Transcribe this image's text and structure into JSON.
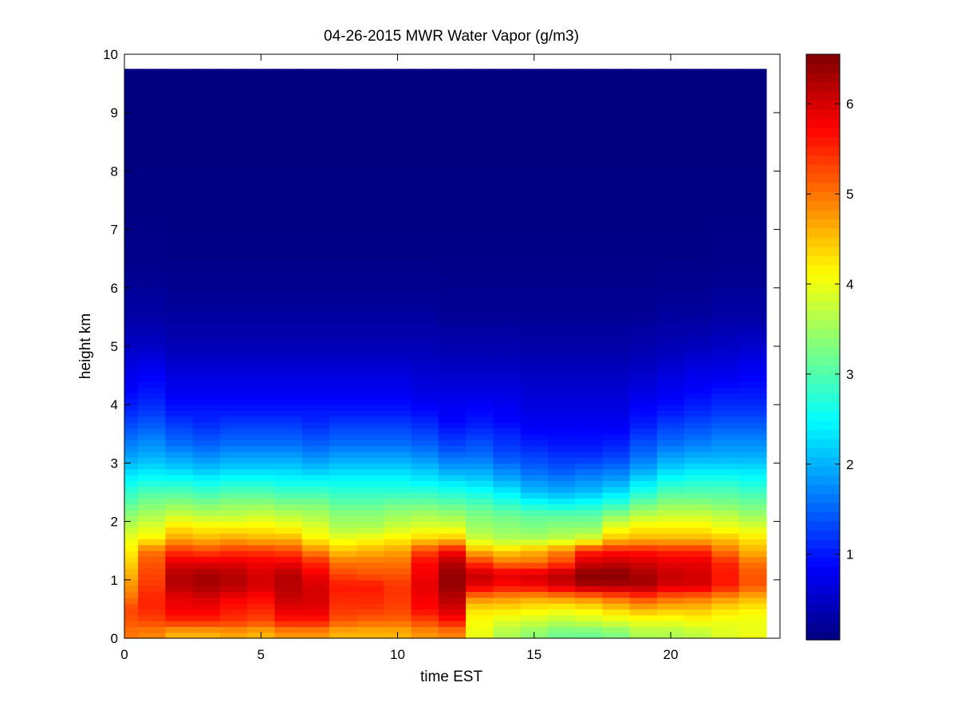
{
  "chart_data": {
    "type": "heatmap",
    "title": "04-26-2015 MWR Water Vapor (g/m3)",
    "xlabel": "time EST",
    "ylabel": "height km",
    "xlim": [
      0,
      24
    ],
    "ylim": [
      0,
      10
    ],
    "xticks": [
      "0",
      "5",
      "10",
      "15",
      "20"
    ],
    "xtick_values": [
      0,
      5,
      10,
      15,
      20
    ],
    "yticks": [
      "0",
      "1",
      "2",
      "3",
      "4",
      "5",
      "6",
      "7",
      "8",
      "9",
      "10"
    ],
    "ytick_values": [
      0,
      1,
      2,
      3,
      4,
      5,
      6,
      7,
      8,
      9,
      10
    ],
    "colorbar": {
      "colormap": "jet",
      "range": [
        0.05,
        6.55
      ],
      "ticks": [
        "1",
        "2",
        "3",
        "4",
        "5",
        "6"
      ],
      "tick_values": [
        1,
        2,
        3,
        4,
        5,
        6
      ]
    },
    "grid": false,
    "time_centers": [
      0,
      1,
      2,
      3,
      4,
      5,
      6,
      7,
      8,
      9,
      10,
      11,
      12,
      13,
      14,
      15,
      16,
      17,
      18,
      19,
      20,
      21,
      22,
      23
    ],
    "data_extent": {
      "time": [
        0,
        23.5
      ],
      "height_km": [
        0,
        9.75
      ]
    },
    "profiles": [
      {
        "h": 0.1,
        "v": [
          5.0,
          4.9,
          4.6,
          4.6,
          4.7,
          4.6,
          4.8,
          4.8,
          4.6,
          4.6,
          4.6,
          4.8,
          4.9,
          4.0,
          3.6,
          3.4,
          3.2,
          3.2,
          3.3,
          3.6,
          3.6,
          3.7,
          3.9,
          4.0
        ]
      },
      {
        "h": 0.3,
        "v": [
          5.2,
          5.3,
          5.5,
          5.5,
          5.4,
          5.3,
          5.6,
          5.6,
          5.2,
          5.1,
          5.1,
          5.3,
          5.6,
          4.1,
          3.9,
          3.8,
          3.7,
          3.8,
          3.9,
          4.0,
          4.0,
          4.1,
          4.0,
          4.0
        ]
      },
      {
        "h": 0.5,
        "v": [
          5.3,
          5.5,
          5.8,
          5.8,
          5.6,
          5.5,
          5.9,
          5.9,
          5.4,
          5.4,
          5.3,
          5.7,
          6.0,
          4.3,
          4.3,
          4.2,
          4.1,
          4.2,
          4.4,
          4.6,
          4.5,
          4.5,
          4.3,
          4.2
        ]
      },
      {
        "h": 0.7,
        "v": [
          5.0,
          5.5,
          5.9,
          6.0,
          5.8,
          5.7,
          6.1,
          6.0,
          5.5,
          5.5,
          5.4,
          5.8,
          6.2,
          4.9,
          4.8,
          4.7,
          4.8,
          4.9,
          5.1,
          5.3,
          5.1,
          5.0,
          4.8,
          4.6
        ]
      },
      {
        "h": 0.9,
        "v": [
          4.8,
          5.4,
          6.2,
          6.3,
          6.2,
          6.0,
          6.2,
          6.0,
          5.6,
          5.6,
          5.4,
          5.9,
          6.4,
          5.9,
          5.7,
          5.8,
          6.0,
          6.3,
          6.3,
          6.3,
          6.0,
          6.0,
          5.6,
          5.2
        ]
      },
      {
        "h": 1.1,
        "v": [
          4.6,
          5.3,
          6.2,
          6.3,
          6.2,
          6.0,
          6.2,
          5.8,
          5.3,
          5.2,
          5.2,
          5.8,
          6.4,
          6.1,
          5.9,
          6.0,
          6.2,
          6.5,
          6.5,
          6.3,
          6.1,
          6.0,
          5.6,
          5.2
        ]
      },
      {
        "h": 1.3,
        "v": [
          4.4,
          5.2,
          5.9,
          5.9,
          5.9,
          5.8,
          5.8,
          5.5,
          5.0,
          5.0,
          5.0,
          5.7,
          6.2,
          5.4,
          5.0,
          5.0,
          5.3,
          6.0,
          6.1,
          6.0,
          5.9,
          5.9,
          5.5,
          5.0
        ]
      },
      {
        "h": 1.5,
        "v": [
          4.2,
          5.0,
          5.4,
          5.3,
          5.4,
          5.4,
          5.3,
          4.9,
          4.5,
          4.6,
          4.7,
          5.3,
          5.7,
          4.6,
          4.4,
          4.6,
          4.9,
          5.5,
          5.6,
          5.6,
          5.5,
          5.5,
          5.0,
          4.6
        ]
      },
      {
        "h": 1.7,
        "v": [
          4.0,
          4.2,
          4.7,
          4.6,
          4.7,
          4.6,
          4.6,
          4.2,
          4.0,
          4.1,
          4.2,
          4.4,
          4.5,
          3.8,
          3.6,
          3.6,
          3.7,
          3.9,
          4.5,
          4.6,
          4.6,
          4.6,
          4.5,
          4.3
        ]
      },
      {
        "h": 1.9,
        "v": [
          3.7,
          3.9,
          4.3,
          4.2,
          4.2,
          4.2,
          4.1,
          3.9,
          3.6,
          3.6,
          3.8,
          3.9,
          3.9,
          3.5,
          3.4,
          3.3,
          3.4,
          3.4,
          4.0,
          4.2,
          4.2,
          4.2,
          4.0,
          3.9
        ]
      },
      {
        "h": 2.1,
        "v": [
          3.4,
          3.6,
          3.8,
          3.7,
          3.7,
          3.8,
          3.7,
          3.6,
          3.4,
          3.4,
          3.5,
          3.6,
          3.5,
          3.3,
          3.2,
          3.1,
          3.1,
          3.1,
          3.4,
          3.7,
          3.8,
          3.8,
          3.7,
          3.5
        ]
      },
      {
        "h": 2.3,
        "v": [
          3.1,
          3.3,
          3.4,
          3.3,
          3.4,
          3.4,
          3.3,
          3.3,
          3.1,
          3.1,
          3.2,
          3.2,
          3.1,
          3.0,
          2.8,
          2.6,
          2.5,
          2.6,
          2.8,
          3.2,
          3.4,
          3.4,
          3.3,
          3.2
        ]
      },
      {
        "h": 2.5,
        "v": [
          2.8,
          3.0,
          3.0,
          2.9,
          3.0,
          3.0,
          2.9,
          2.9,
          2.8,
          2.8,
          2.8,
          2.8,
          2.7,
          2.6,
          2.4,
          2.1,
          2.0,
          2.1,
          2.3,
          2.7,
          3.0,
          3.0,
          3.0,
          2.9
        ]
      },
      {
        "h": 2.7,
        "v": [
          2.5,
          2.6,
          2.6,
          2.5,
          2.6,
          2.6,
          2.5,
          2.5,
          2.5,
          2.5,
          2.5,
          2.4,
          2.3,
          2.2,
          2.0,
          1.8,
          1.7,
          1.8,
          1.9,
          2.3,
          2.6,
          2.7,
          2.7,
          2.6
        ]
      },
      {
        "h": 2.9,
        "v": [
          2.2,
          2.3,
          2.2,
          2.1,
          2.2,
          2.2,
          2.2,
          2.1,
          2.2,
          2.2,
          2.2,
          2.1,
          1.9,
          1.9,
          1.7,
          1.5,
          1.4,
          1.5,
          1.6,
          1.9,
          2.2,
          2.3,
          2.3,
          2.3
        ]
      },
      {
        "h": 3.1,
        "v": [
          1.9,
          2.0,
          1.9,
          1.8,
          1.9,
          1.9,
          1.9,
          1.8,
          1.9,
          1.9,
          1.9,
          1.8,
          1.6,
          1.6,
          1.4,
          1.3,
          1.2,
          1.2,
          1.3,
          1.6,
          1.9,
          2.0,
          2.0,
          2.0
        ]
      },
      {
        "h": 3.3,
        "v": [
          1.7,
          1.8,
          1.6,
          1.5,
          1.6,
          1.6,
          1.6,
          1.5,
          1.6,
          1.6,
          1.6,
          1.5,
          1.3,
          1.4,
          1.2,
          1.1,
          1.0,
          1.0,
          1.1,
          1.4,
          1.6,
          1.7,
          1.8,
          1.8
        ]
      },
      {
        "h": 3.5,
        "v": [
          1.5,
          1.6,
          1.4,
          1.3,
          1.4,
          1.4,
          1.4,
          1.3,
          1.4,
          1.4,
          1.4,
          1.3,
          1.1,
          1.2,
          1.1,
          0.9,
          0.9,
          0.9,
          0.9,
          1.2,
          1.4,
          1.5,
          1.6,
          1.6
        ]
      },
      {
        "h": 3.7,
        "v": [
          1.3,
          1.4,
          1.2,
          1.1,
          1.2,
          1.2,
          1.2,
          1.1,
          1.2,
          1.2,
          1.2,
          1.1,
          0.9,
          1.0,
          0.9,
          0.8,
          0.8,
          0.8,
          0.8,
          1.0,
          1.2,
          1.3,
          1.4,
          1.4
        ]
      },
      {
        "h": 3.9,
        "v": [
          1.1,
          1.2,
          1.0,
          1.0,
          1.0,
          1.0,
          1.0,
          1.0,
          1.0,
          1.0,
          1.0,
          0.9,
          0.8,
          0.9,
          0.8,
          0.7,
          0.7,
          0.7,
          0.7,
          0.9,
          1.0,
          1.1,
          1.2,
          1.2
        ]
      },
      {
        "h": 4.2,
        "v": [
          0.9,
          1.0,
          0.8,
          0.8,
          0.8,
          0.8,
          0.8,
          0.8,
          0.8,
          0.8,
          0.8,
          0.7,
          0.7,
          0.7,
          0.7,
          0.6,
          0.6,
          0.6,
          0.6,
          0.7,
          0.8,
          0.9,
          1.0,
          1.0
        ]
      },
      {
        "h": 4.6,
        "v": [
          0.7,
          0.8,
          0.6,
          0.6,
          0.6,
          0.6,
          0.6,
          0.6,
          0.6,
          0.6,
          0.6,
          0.55,
          0.5,
          0.5,
          0.5,
          0.45,
          0.45,
          0.45,
          0.45,
          0.5,
          0.6,
          0.7,
          0.7,
          0.8
        ]
      },
      {
        "h": 5.0,
        "v": [
          0.5,
          0.5,
          0.4,
          0.4,
          0.4,
          0.4,
          0.4,
          0.4,
          0.4,
          0.4,
          0.4,
          0.4,
          0.35,
          0.35,
          0.35,
          0.3,
          0.3,
          0.3,
          0.3,
          0.35,
          0.4,
          0.45,
          0.5,
          0.55
        ]
      },
      {
        "h": 5.5,
        "v": [
          0.3,
          0.3,
          0.25,
          0.25,
          0.25,
          0.25,
          0.25,
          0.25,
          0.25,
          0.25,
          0.25,
          0.25,
          0.2,
          0.2,
          0.2,
          0.2,
          0.2,
          0.2,
          0.2,
          0.2,
          0.25,
          0.25,
          0.3,
          0.3
        ]
      },
      {
        "h": 6.5,
        "v": [
          0.12,
          0.12,
          0.1,
          0.1,
          0.1,
          0.1,
          0.1,
          0.1,
          0.1,
          0.1,
          0.1,
          0.1,
          0.1,
          0.1,
          0.1,
          0.1,
          0.1,
          0.1,
          0.1,
          0.1,
          0.1,
          0.1,
          0.12,
          0.12
        ]
      },
      {
        "h": 8.0,
        "v": [
          0.06,
          0.06,
          0.06,
          0.06,
          0.06,
          0.06,
          0.06,
          0.06,
          0.06,
          0.06,
          0.06,
          0.06,
          0.06,
          0.06,
          0.06,
          0.06,
          0.06,
          0.06,
          0.06,
          0.06,
          0.06,
          0.06,
          0.06,
          0.06
        ]
      },
      {
        "h": 9.75,
        "v": [
          0.05,
          0.05,
          0.05,
          0.05,
          0.05,
          0.05,
          0.05,
          0.05,
          0.05,
          0.05,
          0.05,
          0.05,
          0.05,
          0.05,
          0.05,
          0.05,
          0.05,
          0.05,
          0.05,
          0.05,
          0.05,
          0.05,
          0.05,
          0.05
        ]
      }
    ]
  }
}
